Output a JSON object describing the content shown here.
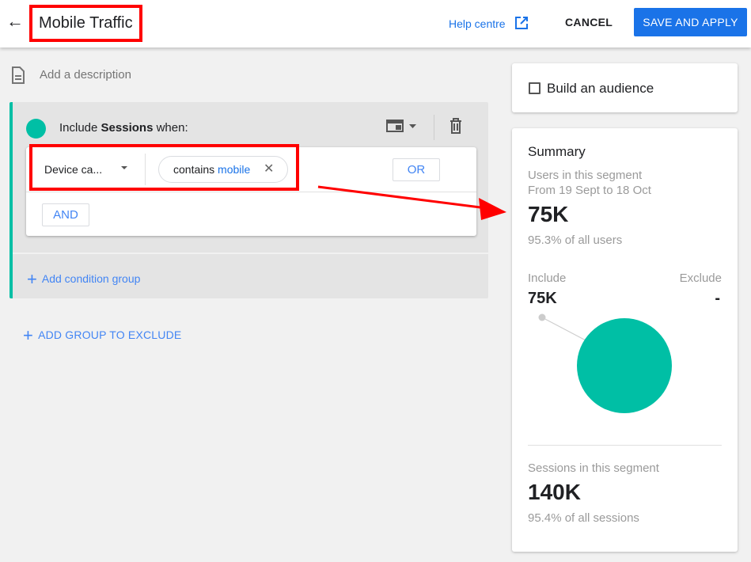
{
  "header": {
    "title": "Mobile Traffic",
    "help_label": "Help centre",
    "cancel_label": "CANCEL",
    "save_label": "SAVE AND APPLY"
  },
  "description_placeholder": "Add a description",
  "group": {
    "include_prefix": "Include ",
    "include_bold": "Sessions",
    "include_suffix": " when:",
    "dimension": "Device ca...",
    "chip_operator": "contains ",
    "chip_value": "mobile",
    "or_label": "OR",
    "and_label": "AND",
    "add_condition_group": "Add condition group",
    "accent": "#00bfa5"
  },
  "add_exclude_label": "ADD GROUP TO EXCLUDE",
  "audience": {
    "label": "Build an audience",
    "checked": false
  },
  "summary": {
    "title": "Summary",
    "users_label": "Users in this segment",
    "date_range": "From 19 Sept to 18 Oct",
    "users_value": "75K",
    "users_pct": "95.3% of all users",
    "include_label": "Include",
    "exclude_label": "Exclude",
    "include_value": "75K",
    "exclude_value": "-",
    "sessions_label": "Sessions in this segment",
    "sessions_value": "140K",
    "sessions_pct": "95.4% of all sessions"
  },
  "annotation_color": "#ff0000"
}
